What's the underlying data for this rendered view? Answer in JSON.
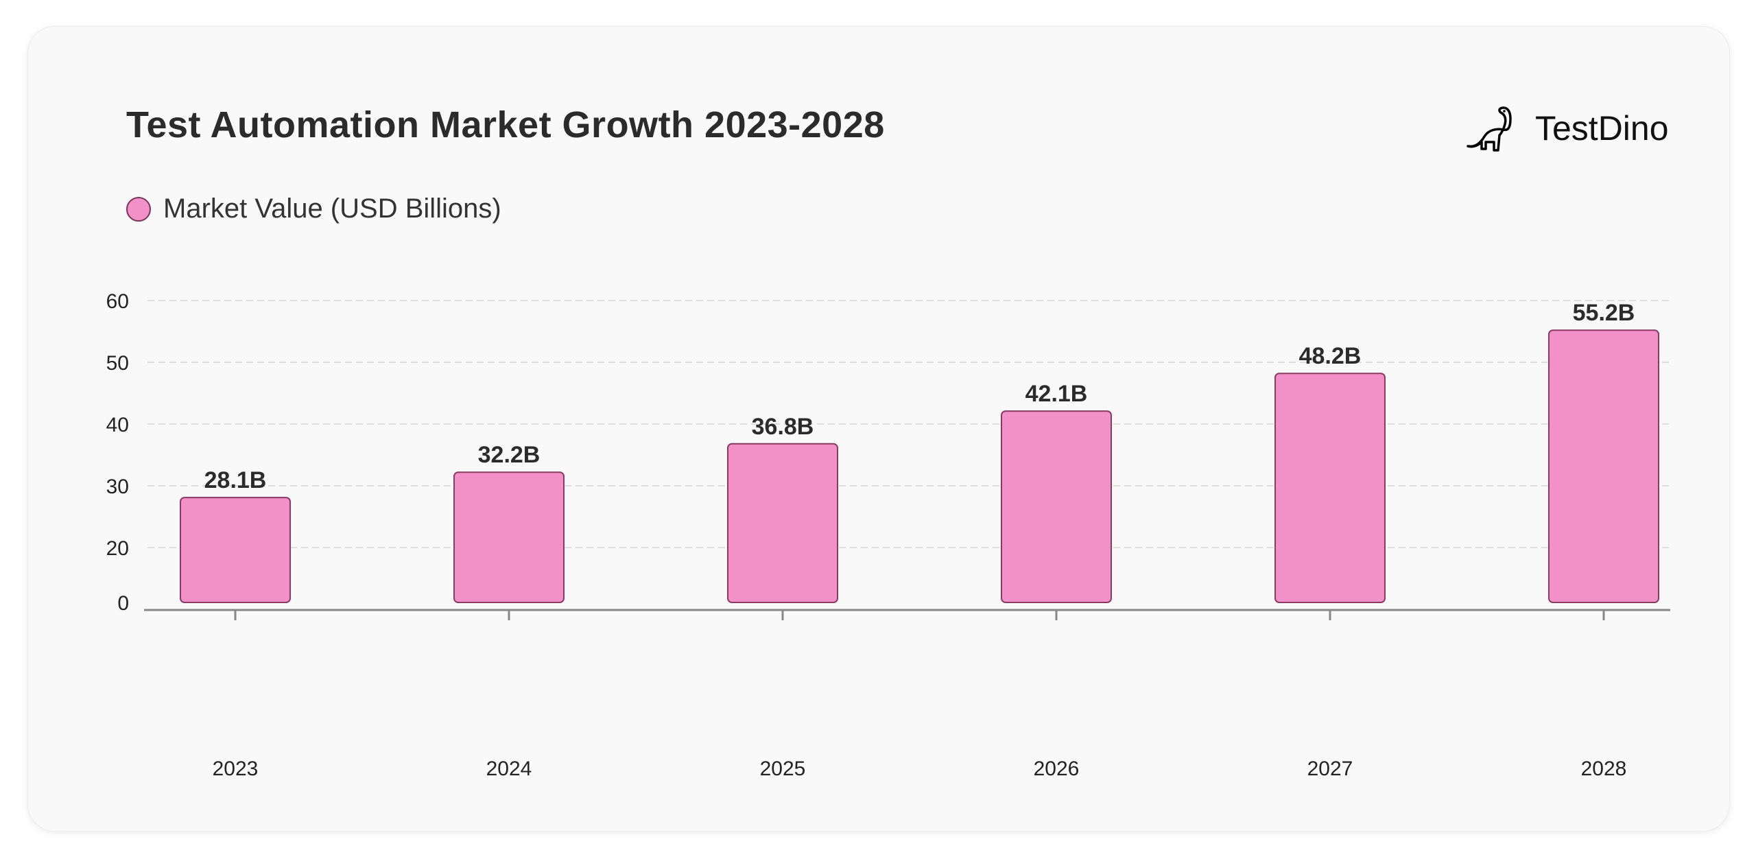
{
  "header": {
    "title": "Test Automation Market Growth 2023-2028"
  },
  "logo": {
    "text": "TestDino",
    "icon": "dinosaur-icon"
  },
  "colors": {
    "bar_fill": "#f290c8",
    "bar_stroke": "#8a3b62",
    "background": "#f9f9f9"
  },
  "chart_data": {
    "type": "bar",
    "title": "Test Automation Market Growth 2023-2028",
    "categories": [
      "2023",
      "2024",
      "2025",
      "2026",
      "2027",
      "2028"
    ],
    "series": [
      {
        "name": "Market Value (USD Billions)",
        "values": [
          28.1,
          32.2,
          36.8,
          42.1,
          48.2,
          55.2
        ]
      }
    ],
    "data_labels": [
      "28.1B",
      "32.2B",
      "36.8B",
      "42.1B",
      "48.2B",
      "55.2B"
    ],
    "yticks": [
      0,
      20,
      30,
      40,
      50,
      60
    ],
    "ylim": [
      0,
      60
    ],
    "xlabel": "",
    "ylabel": "",
    "grid": true,
    "legend": "top-left"
  }
}
